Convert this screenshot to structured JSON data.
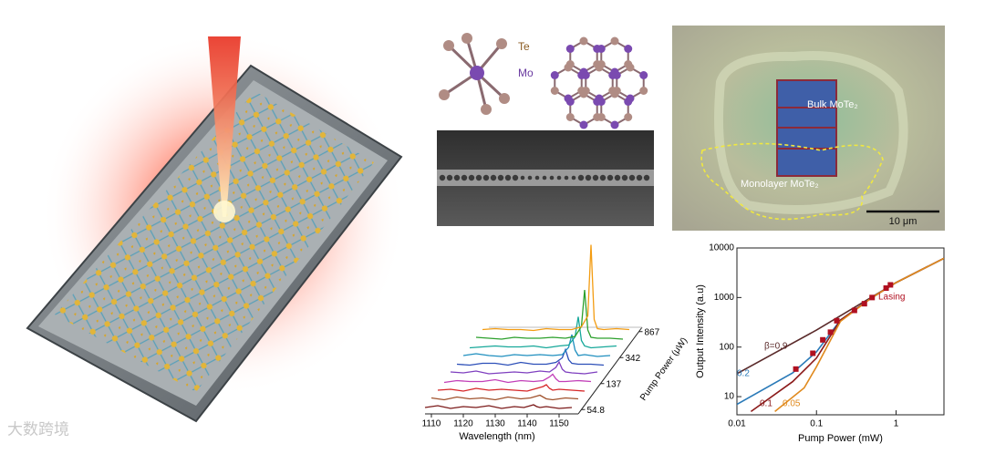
{
  "watermark": "大数跨境",
  "crystal": {
    "te_label": "Te",
    "mo_label": "Mo"
  },
  "micrograph": {
    "bulk_label": "Bulk MoTe₂",
    "monolayer_label": "Monolayer MoTe₂",
    "scale_bar": "10 μm"
  },
  "chart_data": [
    {
      "type": "waterfall",
      "x_label": "Wavelength (nm)",
      "depth_label": "Pump Power (μW)",
      "x": [
        1108,
        1112,
        1116,
        1120,
        1124,
        1128,
        1132,
        1136,
        1139,
        1141,
        1142,
        1143,
        1144,
        1146,
        1150,
        1154
      ],
      "xlim": [
        1108,
        1156
      ],
      "xticks": [
        1110,
        1120,
        1130,
        1140,
        1150
      ],
      "depth_ticks": [
        54.8,
        137,
        342,
        867
      ],
      "series": [
        {
          "color": "#7b1a1a",
          "values": [
            3,
            5,
            2,
            4,
            3,
            5,
            2,
            4,
            3,
            5,
            6,
            4,
            3,
            4,
            2,
            3
          ]
        },
        {
          "color": "#a0522d",
          "values": [
            4,
            2,
            5,
            3,
            4,
            2,
            5,
            3,
            4,
            6,
            7,
            5,
            3,
            2,
            4,
            3
          ]
        },
        {
          "color": "#d62728",
          "values": [
            3,
            4,
            2,
            5,
            3,
            4,
            3,
            2,
            5,
            7,
            9,
            5,
            3,
            4,
            3,
            2
          ]
        },
        {
          "color": "#c23fb8",
          "values": [
            2,
            4,
            3,
            3,
            5,
            2,
            4,
            3,
            4,
            8,
            11,
            6,
            3,
            3,
            4,
            3
          ]
        },
        {
          "color": "#7e3fbf",
          "values": [
            4,
            3,
            5,
            2,
            3,
            4,
            3,
            5,
            4,
            9,
            15,
            7,
            4,
            3,
            2,
            4
          ]
        },
        {
          "color": "#2c4fb8",
          "values": [
            3,
            2,
            4,
            4,
            2,
            5,
            3,
            3,
            5,
            10,
            19,
            8,
            4,
            3,
            3,
            2
          ]
        },
        {
          "color": "#1f8fbf",
          "values": [
            3,
            5,
            3,
            2,
            4,
            3,
            4,
            3,
            4,
            12,
            26,
            9,
            3,
            4,
            2,
            3
          ]
        },
        {
          "color": "#17a89a",
          "values": [
            2,
            3,
            4,
            3,
            3,
            4,
            2,
            4,
            5,
            14,
            36,
            10,
            4,
            2,
            3,
            4
          ]
        },
        {
          "color": "#2ca02c",
          "values": [
            4,
            3,
            2,
            4,
            3,
            3,
            4,
            3,
            5,
            16,
            56,
            12,
            4,
            3,
            3,
            2
          ]
        },
        {
          "color": "#f39c12",
          "values": [
            3,
            4,
            3,
            3,
            2,
            4,
            3,
            3,
            6,
            18,
            96,
            14,
            4,
            3,
            4,
            3
          ]
        }
      ]
    },
    {
      "type": "loglog",
      "x_label": "Pump Power (mW)",
      "y_label": "Output Intensity (a.u)",
      "log_x": true,
      "log_y": true,
      "xlim": [
        0.01,
        4
      ],
      "ylim": [
        4.3,
        10000
      ],
      "xticks": [
        0.01,
        0.1,
        1
      ],
      "yticks": [
        10,
        100,
        1000,
        10000
      ],
      "curves": [
        {
          "label": "β=0.9",
          "color": "#5a2a2a",
          "x": [
            0.01,
            0.1,
            1,
            4
          ],
          "y": [
            29,
            220,
            2000,
            6200
          ]
        },
        {
          "label": "0.2",
          "color": "#2a7ab8",
          "x": [
            0.01,
            0.05,
            0.1,
            0.2,
            0.5,
            1,
            4
          ],
          "y": [
            7,
            30,
            80,
            350,
            1000,
            2000,
            6200
          ]
        },
        {
          "label": "0.1",
          "color": "#8b1a1a",
          "x": [
            0.015,
            0.05,
            0.1,
            0.2,
            0.5,
            1,
            4
          ],
          "y": [
            5,
            20,
            60,
            350,
            1000,
            2000,
            6200
          ]
        },
        {
          "label": "0.05",
          "color": "#e08a1e",
          "x": [
            0.03,
            0.07,
            0.1,
            0.2,
            0.5,
            1,
            4
          ],
          "y": [
            5,
            15,
            40,
            330,
            1000,
            2000,
            6200
          ]
        }
      ],
      "points": {
        "color": "#b01020",
        "x": [
          0.055,
          0.09,
          0.12,
          0.15,
          0.18,
          0.3,
          0.4,
          0.5,
          0.75,
          0.85
        ],
        "y": [
          36,
          75,
          140,
          200,
          340,
          550,
          750,
          1000,
          1550,
          1800
        ]
      },
      "annotation": "Lasing"
    }
  ]
}
